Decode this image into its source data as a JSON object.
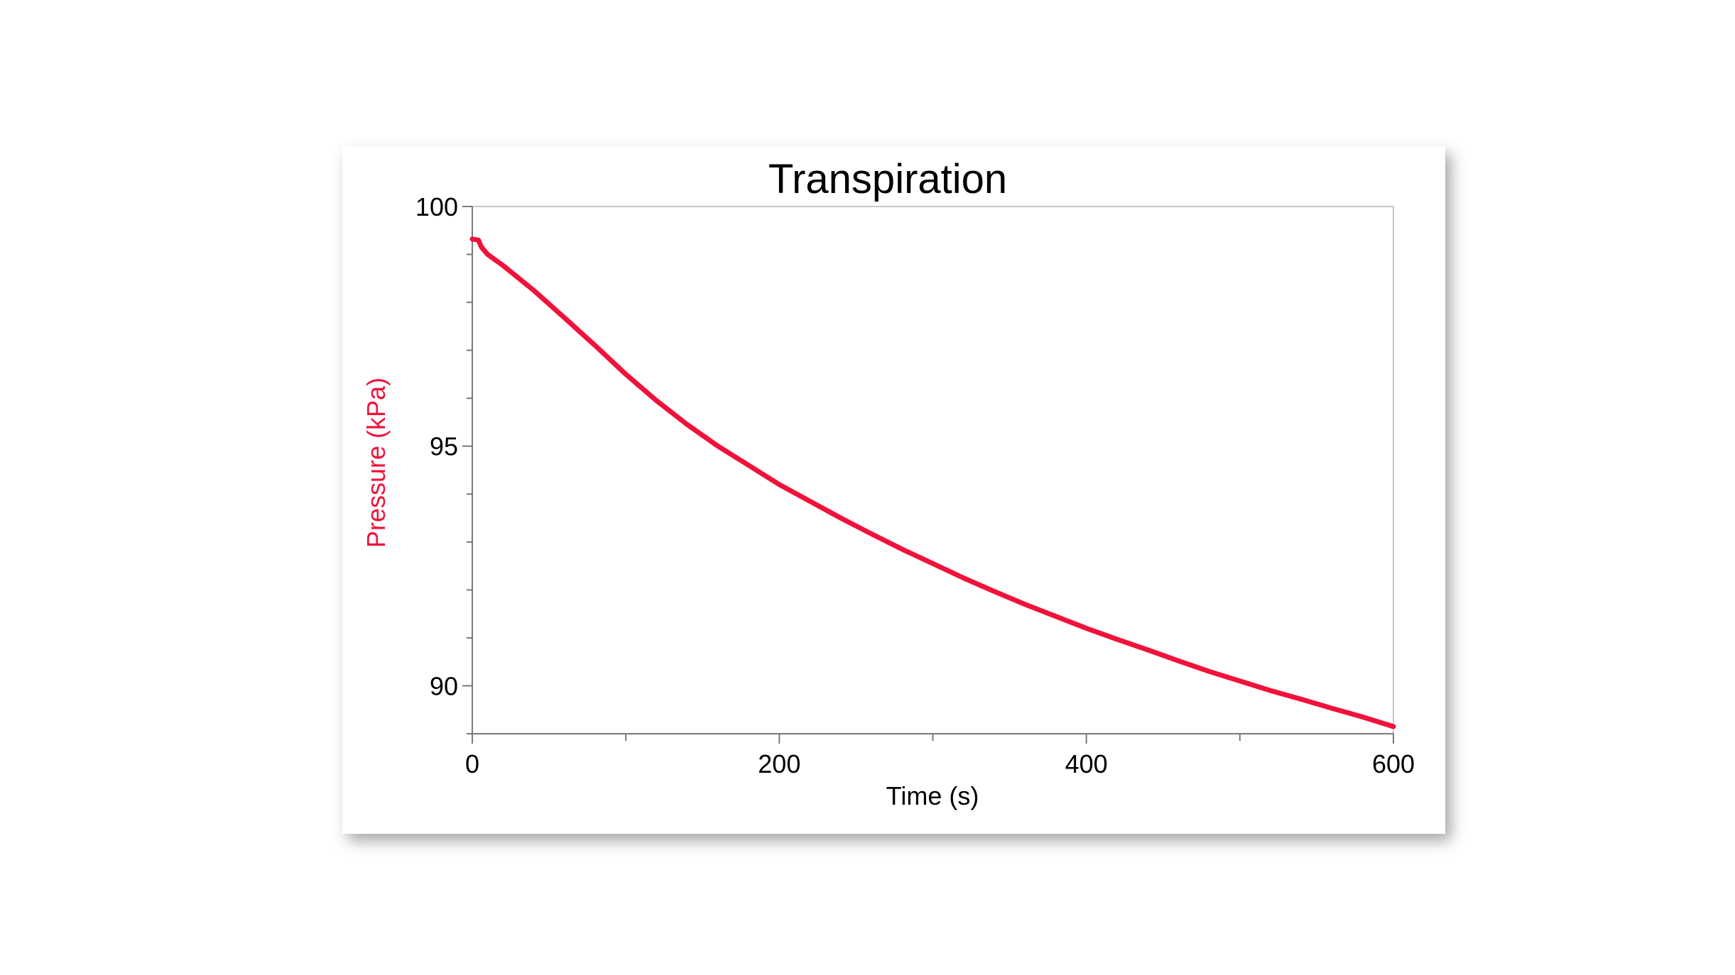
{
  "chart_data": {
    "type": "line",
    "title": "Transpiration",
    "xlabel": "Time (s)",
    "ylabel": "Pressure (kPa)",
    "xlim": [
      0,
      600
    ],
    "ylim": [
      89,
      100
    ],
    "x_ticks": [
      "0",
      "200",
      "400",
      "600"
    ],
    "y_ticks": [
      "100",
      "95",
      "90"
    ],
    "x_tick_values": [
      0,
      200,
      400,
      600
    ],
    "y_tick_values": [
      100,
      95,
      90
    ],
    "x_minor_step": 100,
    "y_minor_step": 1,
    "grid": false,
    "series": [
      {
        "color": "#f0123a",
        "x": [
          0,
          4,
          6,
          10,
          20,
          40,
          60,
          80,
          100,
          120,
          140,
          160,
          180,
          200,
          220,
          240,
          260,
          280,
          300,
          320,
          340,
          360,
          380,
          400,
          420,
          440,
          460,
          480,
          500,
          520,
          540,
          560,
          580,
          600
        ],
        "y": [
          99.32,
          99.3,
          99.15,
          99.0,
          98.77,
          98.25,
          97.68,
          97.1,
          96.5,
          95.95,
          95.45,
          95.0,
          94.6,
          94.2,
          93.85,
          93.5,
          93.17,
          92.85,
          92.55,
          92.25,
          91.97,
          91.7,
          91.45,
          91.2,
          90.97,
          90.75,
          90.52,
          90.3,
          90.1,
          89.9,
          89.72,
          89.53,
          89.35,
          89.15
        ]
      }
    ]
  }
}
